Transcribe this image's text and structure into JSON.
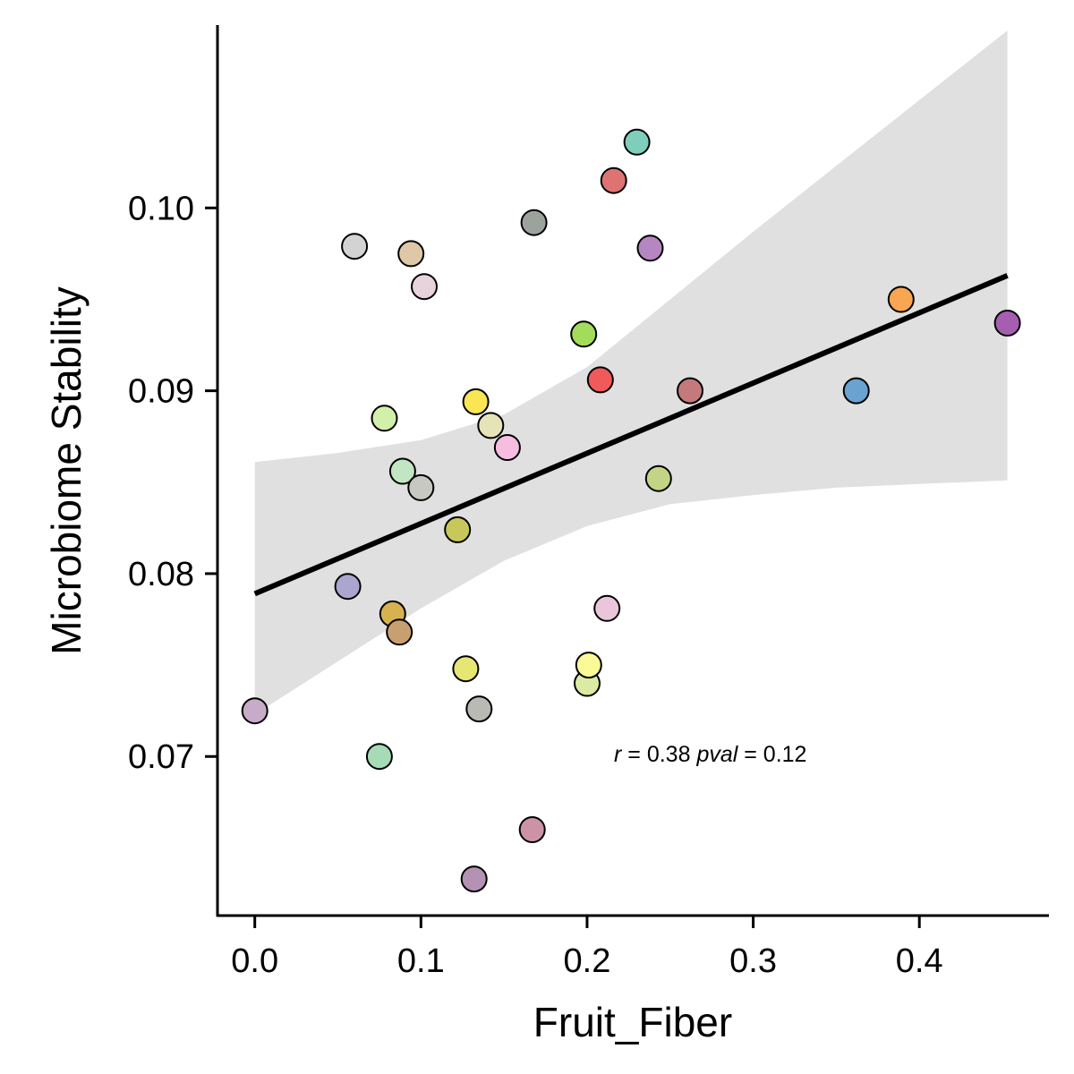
{
  "chart_data": {
    "type": "scatter",
    "title": "",
    "xlabel": "Fruit_Fiber",
    "ylabel": "Microbiome Stability",
    "xlim": [
      -0.023,
      0.478
    ],
    "ylim": [
      0.0613,
      0.11
    ],
    "x_ticks": [
      0.0,
      0.1,
      0.2,
      0.3,
      0.4
    ],
    "x_tick_labels": [
      "0.0",
      "0.1",
      "0.2",
      "0.3",
      "0.4"
    ],
    "y_ticks": [
      0.07,
      0.08,
      0.09,
      0.1
    ],
    "y_tick_labels": [
      "0.07",
      "0.08",
      "0.09",
      "0.10"
    ],
    "grid": false,
    "legend": "none",
    "regression": {
      "x": [
        0.0,
        0.453
      ],
      "y": [
        0.0789,
        0.0963
      ],
      "color": "#000000"
    },
    "confidence_band": {
      "color": "#e0e0e0",
      "x": [
        0.0,
        0.05,
        0.1,
        0.15,
        0.2,
        0.25,
        0.3,
        0.35,
        0.4,
        0.453
      ],
      "upper": [
        0.0861,
        0.0866,
        0.0873,
        0.0887,
        0.0913,
        0.095,
        0.0987,
        0.1023,
        0.1059,
        0.1097
      ],
      "lower": [
        0.0723,
        0.0752,
        0.0781,
        0.0807,
        0.0826,
        0.0838,
        0.0843,
        0.0847,
        0.0849,
        0.0851
      ]
    },
    "annotation": {
      "r_symbol": "r",
      "r_text": " = 0.38 ",
      "p_symbol": "pval",
      "p_text": " = 0.12",
      "x": 0.216,
      "y": 0.0699
    },
    "points": [
      {
        "x": 0.0,
        "y": 0.0725,
        "color": "#c8abc8"
      },
      {
        "x": 0.056,
        "y": 0.0793,
        "color": "#aaa6d0"
      },
      {
        "x": 0.06,
        "y": 0.0979,
        "color": "#d3d3d3"
      },
      {
        "x": 0.075,
        "y": 0.07,
        "color": "#a6dbb6"
      },
      {
        "x": 0.078,
        "y": 0.0885,
        "color": "#d3f0ab"
      },
      {
        "x": 0.083,
        "y": 0.0778,
        "color": "#d9b250"
      },
      {
        "x": 0.087,
        "y": 0.0768,
        "color": "#c8a070"
      },
      {
        "x": 0.089,
        "y": 0.0856,
        "color": "#c2e6c2"
      },
      {
        "x": 0.094,
        "y": 0.0975,
        "color": "#dec8a8"
      },
      {
        "x": 0.1,
        "y": 0.0847,
        "color": "#c8c8c3"
      },
      {
        "x": 0.102,
        "y": 0.0957,
        "color": "#e8d3dd"
      },
      {
        "x": 0.122,
        "y": 0.0824,
        "color": "#c8c85a"
      },
      {
        "x": 0.127,
        "y": 0.0748,
        "color": "#e6e673"
      },
      {
        "x": 0.132,
        "y": 0.0633,
        "color": "#b392b3"
      },
      {
        "x": 0.133,
        "y": 0.0894,
        "color": "#fae655"
      },
      {
        "x": 0.135,
        "y": 0.0726,
        "color": "#b9bab3"
      },
      {
        "x": 0.142,
        "y": 0.0881,
        "color": "#e6e3b9"
      },
      {
        "x": 0.152,
        "y": 0.0869,
        "color": "#f6bde0"
      },
      {
        "x": 0.167,
        "y": 0.066,
        "color": "#cc93a6"
      },
      {
        "x": 0.168,
        "y": 0.0992,
        "color": "#9ca39c"
      },
      {
        "x": 0.198,
        "y": 0.0931,
        "color": "#a3dc5a"
      },
      {
        "x": 0.2,
        "y": 0.074,
        "color": "#dbeba3"
      },
      {
        "x": 0.201,
        "y": 0.075,
        "color": "#fafa96"
      },
      {
        "x": 0.208,
        "y": 0.0906,
        "color": "#f25a5a"
      },
      {
        "x": 0.212,
        "y": 0.0781,
        "color": "#ebc6da"
      },
      {
        "x": 0.216,
        "y": 0.1015,
        "color": "#dd7373"
      },
      {
        "x": 0.23,
        "y": 0.1036,
        "color": "#7fcdbb"
      },
      {
        "x": 0.238,
        "y": 0.0978,
        "color": "#b686c2"
      },
      {
        "x": 0.243,
        "y": 0.0852,
        "color": "#c3d484"
      },
      {
        "x": 0.262,
        "y": 0.09,
        "color": "#c47a7a"
      },
      {
        "x": 0.362,
        "y": 0.09,
        "color": "#6aa3d2"
      },
      {
        "x": 0.389,
        "y": 0.095,
        "color": "#f9a552"
      },
      {
        "x": 0.453,
        "y": 0.0937,
        "color": "#a65fb0"
      }
    ]
  }
}
